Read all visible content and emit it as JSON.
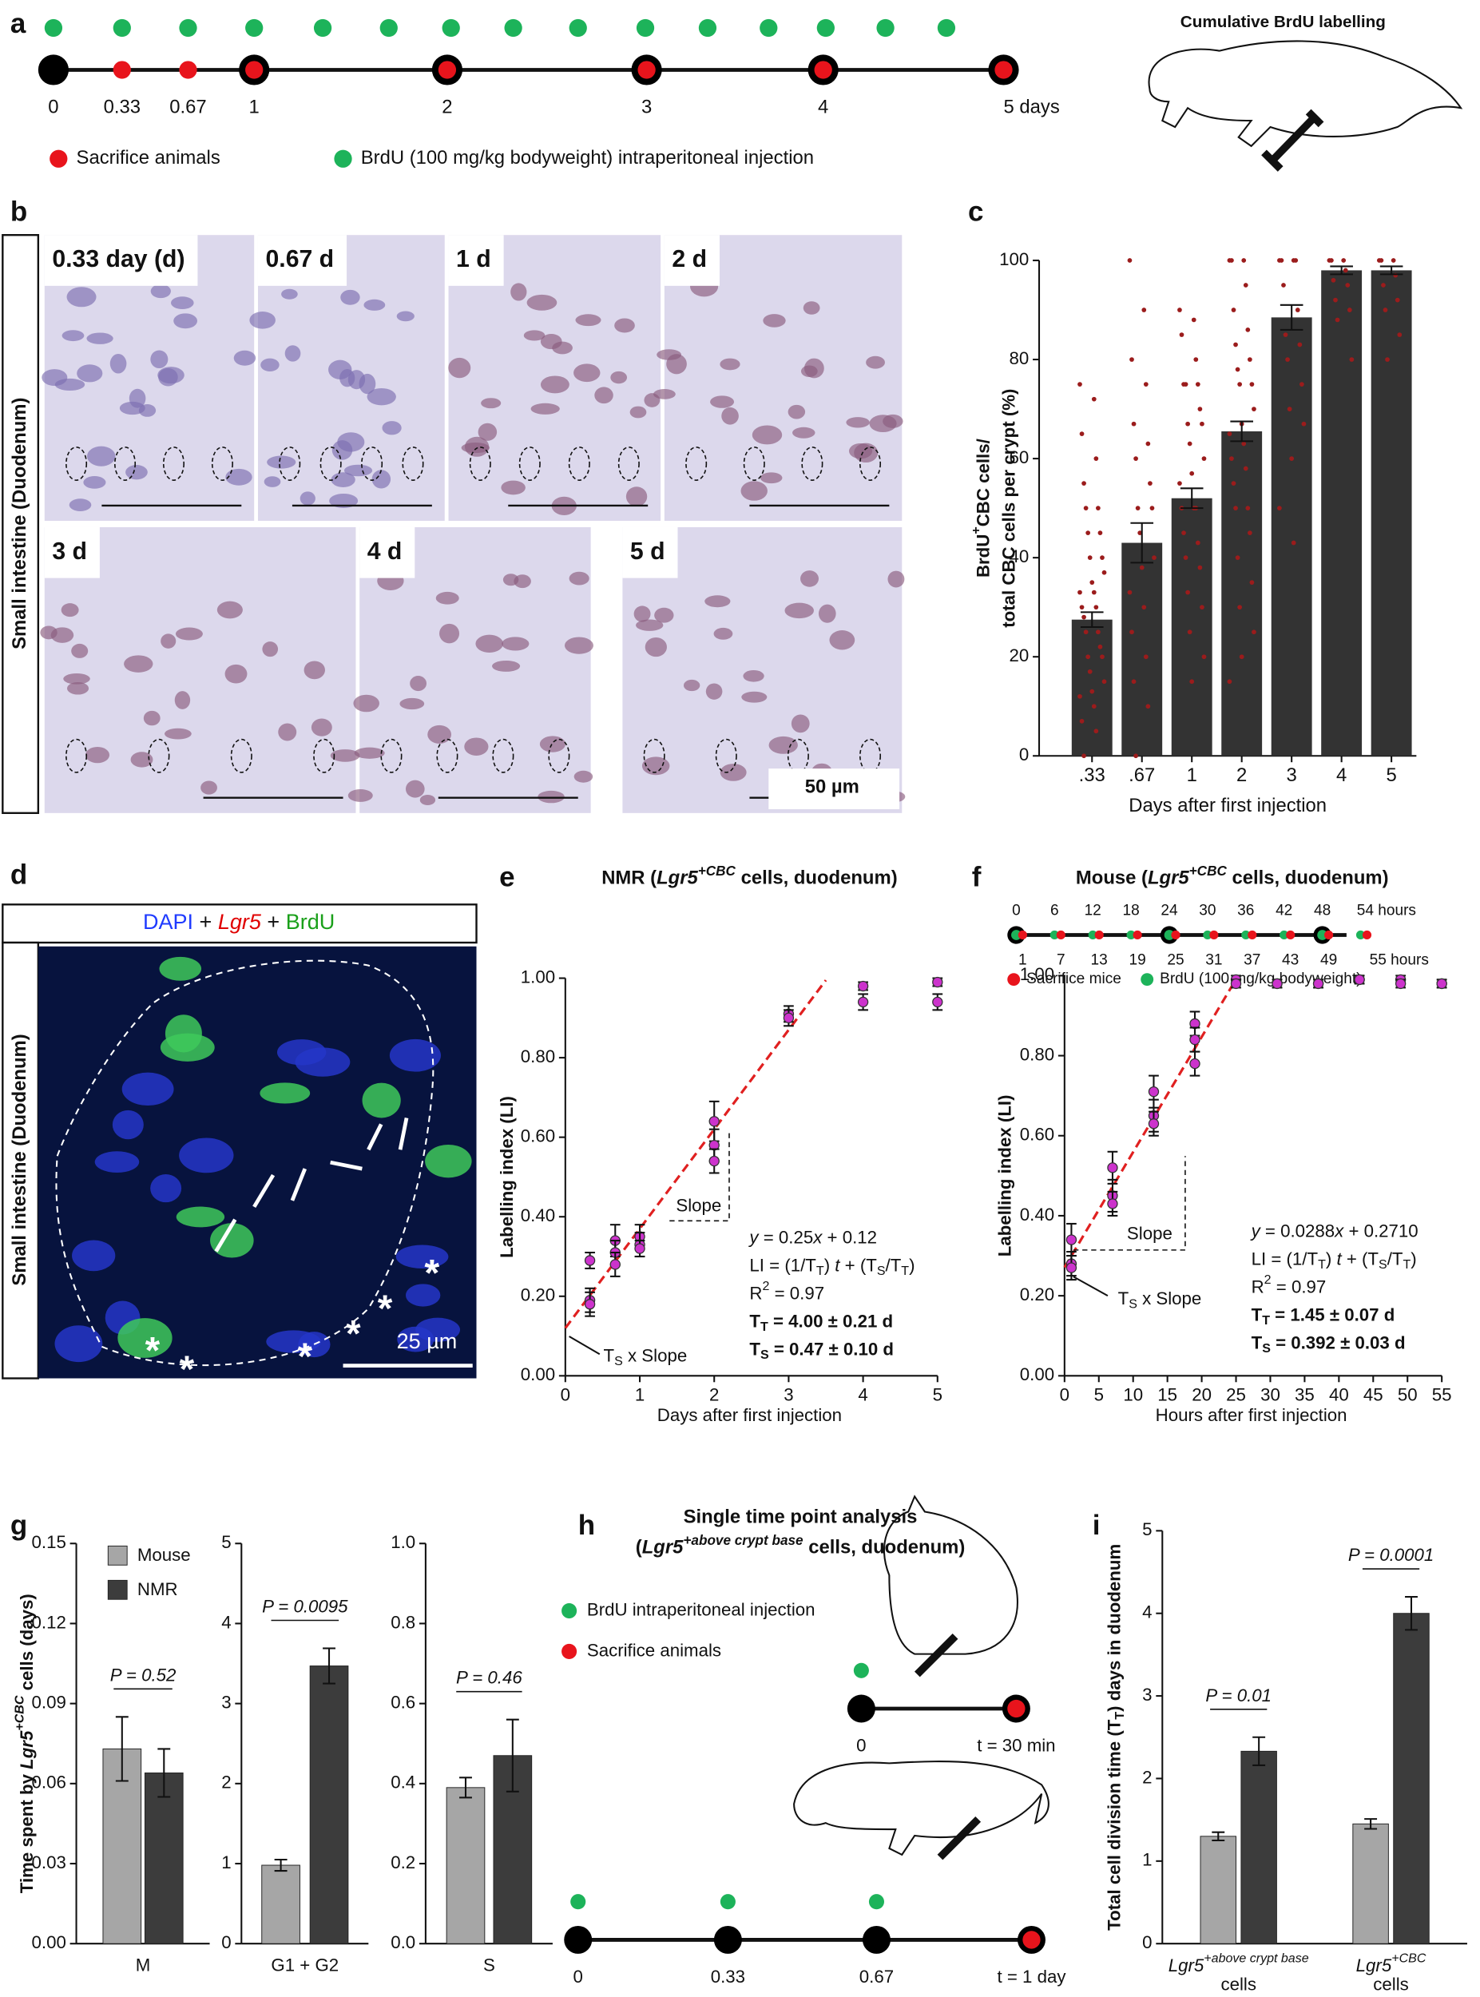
{
  "panel_a": {
    "label": "a",
    "title": "Cumulative BrdU labelling",
    "timeline": [
      0,
      0.33,
      0.67,
      1,
      2,
      3,
      4,
      {
        "value": 5,
        "label": "5 days"
      }
    ],
    "legend": [
      "Sacrifice animals",
      "BrdU (100 mg/kg bodyweight) intraperitoneal injection"
    ]
  },
  "panel_b": {
    "label": "b",
    "side_label": "Small intestine (Duodenum)",
    "images": [
      "0.33 day (d)",
      "0.67 d",
      "1 d",
      "2 d",
      "3 d",
      "4 d",
      "5 d"
    ],
    "scale_bar": "50 µm"
  },
  "panel_d": {
    "label": "d",
    "title": [
      {
        "text": "DAPI",
        "color": "#1f3bff"
      },
      {
        "text": " + "
      },
      {
        "text": "Lgr5",
        "style": "italic",
        "color": "#e00000"
      },
      {
        "text": " + "
      },
      {
        "text": "BrdU",
        "color": "#1aa01a"
      }
    ],
    "side_label": "Small intestine (Duodenum)",
    "scale_bar": "25 µm",
    "asterisk": "*"
  },
  "panel_h": {
    "label": "h",
    "title": [
      "Single time point analysis",
      [
        {
          "text": "("
        },
        {
          "text": "Lgr5",
          "style": "italic"
        },
        {
          "text": "+above crypt base",
          "style": "italic sup"
        },
        {
          "text": " cells, duodenum)"
        }
      ]
    ],
    "legend": [
      "BrdU intraperitoneal injection",
      "Sacrifice animals"
    ],
    "timeline_mouse": [
      0,
      {
        "value": 30,
        "label": "t = 30 min"
      }
    ],
    "timeline_nmr": [
      0,
      0.33,
      0.67,
      {
        "value": 1,
        "label": "t = 1 day"
      }
    ]
  },
  "chart_data": [
    {
      "type": "bar",
      "label": "c",
      "categories": [
        ".33",
        ".67",
        "1",
        "2",
        "3",
        "4",
        "5"
      ],
      "values": [
        27.5,
        43,
        52,
        65.5,
        88.5,
        98,
        98
      ],
      "errors": [
        1.5,
        4,
        2,
        2,
        2.5,
        0.8,
        0.8
      ],
      "points": [
        [
          75,
          72,
          65,
          60,
          55,
          50,
          50,
          45,
          45,
          40,
          40,
          37,
          35,
          33,
          33,
          30,
          30,
          28,
          25,
          25,
          22,
          20,
          20,
          17,
          15,
          13,
          12,
          10,
          7,
          5,
          0
        ],
        [
          100,
          90,
          80,
          75,
          67,
          63,
          60,
          55,
          50,
          50,
          45,
          40,
          38,
          33,
          30,
          25,
          20,
          15,
          10,
          0
        ],
        [
          90,
          88,
          85,
          80,
          75,
          75,
          75,
          70,
          67,
          67,
          63,
          60,
          57,
          55,
          50,
          50,
          50,
          45,
          43,
          40,
          38,
          33,
          30,
          25,
          20,
          15
        ],
        [
          100,
          100,
          100,
          95,
          90,
          86,
          83,
          80,
          78,
          75,
          75,
          70,
          67,
          65,
          63,
          60,
          58,
          55,
          50,
          50,
          45,
          40,
          35,
          30,
          25,
          20,
          15
        ],
        [
          100,
          100,
          100,
          100,
          95,
          90,
          85,
          83,
          80,
          75,
          70,
          67,
          60,
          50,
          43
        ],
        [
          100,
          100,
          100,
          98,
          96,
          95,
          92,
          90,
          88,
          80
        ],
        [
          100,
          100,
          100,
          97,
          95,
          92,
          90,
          85,
          80
        ]
      ],
      "color": "#333333",
      "point_color": "#9b1c1c",
      "ylim": [
        0,
        100
      ],
      "yticks": [
        0,
        20,
        40,
        60,
        80,
        100
      ],
      "ylabel": [
        [
          {
            "text": "BrdU"
          },
          {
            "text": "+",
            "style": "sup"
          },
          {
            "text": "CBC cells/"
          }
        ],
        "total CBC cells per crypt (%)"
      ],
      "xlabel": "Days after first injection"
    },
    {
      "type": "scatter",
      "label": "e",
      "title": [
        {
          "text": "NMR ("
        },
        {
          "text": "Lgr5",
          "style": "italic"
        },
        {
          "text": "+CBC",
          "style": "italic sup"
        },
        {
          "text": " cells, duodenum)"
        }
      ],
      "x": [
        0.33,
        0.33,
        0.33,
        0.67,
        0.67,
        0.67,
        1,
        1,
        1,
        2,
        2,
        2,
        3,
        3,
        4,
        4,
        5,
        5
      ],
      "values": [
        0.29,
        0.19,
        0.18,
        0.34,
        0.31,
        0.28,
        0.35,
        0.33,
        0.32,
        0.64,
        0.58,
        0.54,
        0.91,
        0.9,
        0.98,
        0.94,
        0.99,
        0.94
      ],
      "errors": [
        0.02,
        0.03,
        0.03,
        0.04,
        0.03,
        0.03,
        0.03,
        0.03,
        0.02,
        0.05,
        0.04,
        0.03,
        0.02,
        0.02,
        0.01,
        0.02,
        0.01,
        0.02
      ],
      "color": "#cc33cc",
      "fit": {
        "x": [
          0,
          3.5
        ],
        "values": [
          0.12,
          0.995
        ],
        "color": "#e02020"
      },
      "xlim": [
        0,
        5
      ],
      "xticks": [
        0,
        1,
        2,
        3,
        4,
        5
      ],
      "ylim": [
        0,
        1
      ],
      "yticks": [
        {
          "value": 0,
          "label": "0.00"
        },
        {
          "value": 0.2,
          "label": "0.20"
        },
        {
          "value": 0.4,
          "label": "0.40"
        },
        {
          "value": 0.6,
          "label": "0.60"
        },
        {
          "value": 0.8,
          "label": "0.80"
        },
        {
          "value": 1,
          "label": "1.00"
        }
      ],
      "xlabel": "Days after first injection",
      "ylabel": "Labelling index (LI)",
      "slope_label": "Slope",
      "ts_label": [
        {
          "text": "T"
        },
        {
          "text": "S",
          "style": "sub"
        },
        {
          "text": " x Slope"
        }
      ],
      "equation": [
        [
          {
            "text": "y",
            "style": "italic"
          },
          {
            "text": " = 0.25"
          },
          {
            "text": "x",
            "style": "italic"
          },
          {
            "text": " + 0.12"
          }
        ],
        [
          {
            "text": "LI = (1/T"
          },
          {
            "text": "T",
            "style": "sub"
          },
          {
            "text": ") "
          },
          {
            "text": "t",
            "style": "italic"
          },
          {
            "text": " + (T"
          },
          {
            "text": "S",
            "style": "sub"
          },
          {
            "text": "/T"
          },
          {
            "text": "T",
            "style": "sub"
          },
          {
            "text": ")"
          }
        ],
        [
          {
            "text": "R"
          },
          {
            "text": "2",
            "style": "sup"
          },
          {
            "text": " = 0.97"
          }
        ],
        [
          {
            "text": "T",
            "style": "bold"
          },
          {
            "text": "T",
            "style": "bold sub"
          },
          {
            "text": " = 4.00 ± 0.21 d",
            "style": "bold"
          }
        ],
        [
          {
            "text": "T",
            "style": "bold"
          },
          {
            "text": "S",
            "style": "bold sub"
          },
          {
            "text": " = 0.47 ± 0.10 d",
            "style": "bold"
          }
        ]
      ]
    },
    {
      "type": "scatter",
      "label": "f",
      "title": [
        {
          "text": "Mouse ("
        },
        {
          "text": "Lgr5",
          "style": "italic"
        },
        {
          "text": "+CBC",
          "style": "italic sup"
        },
        {
          "text": " cells, duodenum)"
        }
      ],
      "timeline": {
        "top": [
          0,
          6,
          12,
          18,
          24,
          30,
          36,
          42,
          48,
          {
            "value": 54,
            "label": "54 hours"
          }
        ],
        "bottom": [
          1,
          7,
          13,
          19,
          25,
          31,
          37,
          43,
          49,
          {
            "value": 55,
            "label": "55 hours"
          }
        ],
        "legend": [
          "Sacrifice mice",
          "BrdU (100 mg/kg bodyweight)"
        ]
      },
      "x": [
        1,
        1,
        1,
        7,
        7,
        7,
        13,
        13,
        13,
        19,
        19,
        19,
        25,
        25,
        31,
        31,
        37,
        37,
        43,
        43,
        49,
        49,
        55,
        55
      ],
      "values": [
        0.34,
        0.28,
        0.27,
        0.52,
        0.45,
        0.43,
        0.71,
        0.65,
        0.63,
        0.88,
        0.84,
        0.78,
        0.99,
        0.98,
        0.98,
        0.98,
        0.98,
        0.98,
        0.99,
        0.99,
        0.99,
        0.98,
        0.98,
        0.98
      ],
      "errors": [
        0.04,
        0.03,
        0.03,
        0.04,
        0.04,
        0.03,
        0.04,
        0.04,
        0.03,
        0.03,
        0.03,
        0.03,
        0.01,
        0.01,
        0.01,
        0.01,
        0.01,
        0.01,
        0.01,
        0.01,
        0.01,
        0.01,
        0.01,
        0.01
      ],
      "color": "#cc33cc",
      "fit": {
        "x": [
          0,
          25
        ],
        "values": [
          0.271,
          0.991
        ],
        "color": "#e02020"
      },
      "xlim": [
        0,
        55
      ],
      "xticks": [
        0,
        5,
        10,
        15,
        20,
        25,
        30,
        35,
        40,
        45,
        50,
        55
      ],
      "ylim": [
        0,
        1
      ],
      "yticks": [
        {
          "value": 0,
          "label": "0.00"
        },
        {
          "value": 0.2,
          "label": "0.20"
        },
        {
          "value": 0.4,
          "label": "0.40"
        },
        {
          "value": 0.6,
          "label": "0.60"
        },
        {
          "value": 0.8,
          "label": "0.80"
        },
        {
          "value": 1,
          "label": "1.00"
        }
      ],
      "xlabel": "Hours after first injection",
      "ylabel": "Labelling index (LI)",
      "slope_label": "Slope",
      "ts_label": [
        {
          "text": "T"
        },
        {
          "text": "S",
          "style": "sub"
        },
        {
          "text": " x Slope"
        }
      ],
      "equation": [
        [
          {
            "text": "y",
            "style": "italic"
          },
          {
            "text": " = 0.0288"
          },
          {
            "text": "x",
            "style": "italic"
          },
          {
            "text": " + 0.2710"
          }
        ],
        [
          {
            "text": "LI = (1/T"
          },
          {
            "text": "T",
            "style": "sub"
          },
          {
            "text": ") "
          },
          {
            "text": "t",
            "style": "italic"
          },
          {
            "text": " + (T"
          },
          {
            "text": "S",
            "style": "sub"
          },
          {
            "text": "/T"
          },
          {
            "text": "T",
            "style": "sub"
          },
          {
            "text": ")"
          }
        ],
        [
          {
            "text": "R"
          },
          {
            "text": "2",
            "style": "sup"
          },
          {
            "text": " = 0.97"
          }
        ],
        [
          {
            "text": "T",
            "style": "bold"
          },
          {
            "text": "T",
            "style": "bold sub"
          },
          {
            "text": " = 1.45 ± 0.07 d",
            "style": "bold"
          }
        ],
        [
          {
            "text": "T",
            "style": "bold"
          },
          {
            "text": "S",
            "style": "bold sub"
          },
          {
            "text": " = 0.392 ± 0.03 d",
            "style": "bold"
          }
        ]
      ]
    },
    {
      "type": "grouped_bar",
      "label": "g",
      "legend": true,
      "categories": [
        "M"
      ],
      "series": [
        {
          "name": "Mouse",
          "color": "#a6a6a6",
          "values": [
            0.073
          ],
          "errors": [
            0.012
          ]
        },
        {
          "name": "NMR",
          "color": "#3c3c3c",
          "values": [
            0.064
          ],
          "errors": [
            0.009
          ]
        }
      ],
      "p_values": [
        "P = 0.52"
      ],
      "ylim": [
        0,
        0.15
      ],
      "yticks": [
        {
          "value": 0,
          "label": "0.00"
        },
        {
          "value": 0.03,
          "label": "0.03"
        },
        {
          "value": 0.06,
          "label": "0.06"
        },
        {
          "value": 0.09,
          "label": "0.09"
        },
        {
          "value": 0.12,
          "label": "0.12"
        },
        {
          "value": 0.15,
          "label": "0.15"
        }
      ],
      "ylabel": [
        {
          "text": "Time spent by "
        },
        {
          "text": "Lgr5",
          "style": "italic"
        },
        {
          "text": "+CBC",
          "style": "italic sup"
        },
        {
          "text": " cells (days)"
        }
      ]
    },
    {
      "type": "grouped_bar",
      "categories": [
        "G1 + G2"
      ],
      "series": [
        {
          "color": "#a6a6a6",
          "values": [
            0.98
          ],
          "errors": [
            0.07
          ]
        },
        {
          "color": "#3c3c3c",
          "values": [
            3.47
          ],
          "errors": [
            0.22
          ]
        }
      ],
      "p_values": [
        "P = 0.0095"
      ],
      "ylim": [
        0,
        5
      ],
      "yticks": [
        0,
        1,
        2,
        3,
        4,
        5
      ]
    },
    {
      "type": "grouped_bar",
      "categories": [
        "S"
      ],
      "series": [
        {
          "color": "#a6a6a6",
          "values": [
            0.39
          ],
          "errors": [
            0.025
          ]
        },
        {
          "color": "#3c3c3c",
          "values": [
            0.47
          ],
          "errors": [
            0.09
          ]
        }
      ],
      "p_values": [
        "P = 0.46"
      ],
      "ylim": [
        0,
        1
      ],
      "yticks": [
        {
          "value": 0,
          "label": "0.0"
        },
        0.2,
        0.4,
        0.6,
        0.8,
        {
          "value": 1,
          "label": "1.0"
        }
      ]
    },
    {
      "type": "grouped_bar",
      "label": "i",
      "categories": [
        [
          [
            {
              "text": "Lgr5",
              "style": "italic"
            },
            {
              "text": "+above crypt base",
              "style": "italic sup"
            }
          ],
          "cells"
        ],
        [
          [
            {
              "text": "Lgr5",
              "style": "italic"
            },
            {
              "text": "+CBC",
              "style": "italic sup"
            }
          ],
          "cells"
        ]
      ],
      "series": [
        {
          "color": "#a6a6a6",
          "values": [
            1.3,
            1.45
          ],
          "errors": [
            0.05,
            0.06
          ]
        },
        {
          "color": "#3c3c3c",
          "values": [
            2.33,
            4.0
          ],
          "errors": [
            0.17,
            0.2
          ]
        }
      ],
      "p_values": [
        "P = 0.01",
        "P = 0.0001"
      ],
      "ylim": [
        0,
        5
      ],
      "yticks": [
        0,
        1,
        2,
        3,
        4,
        5
      ],
      "ylabel": [
        {
          "text": "Total cell division time (T"
        },
        {
          "text": "T",
          "style": "sub"
        },
        {
          "text": ") days in duodenum"
        }
      ]
    }
  ]
}
